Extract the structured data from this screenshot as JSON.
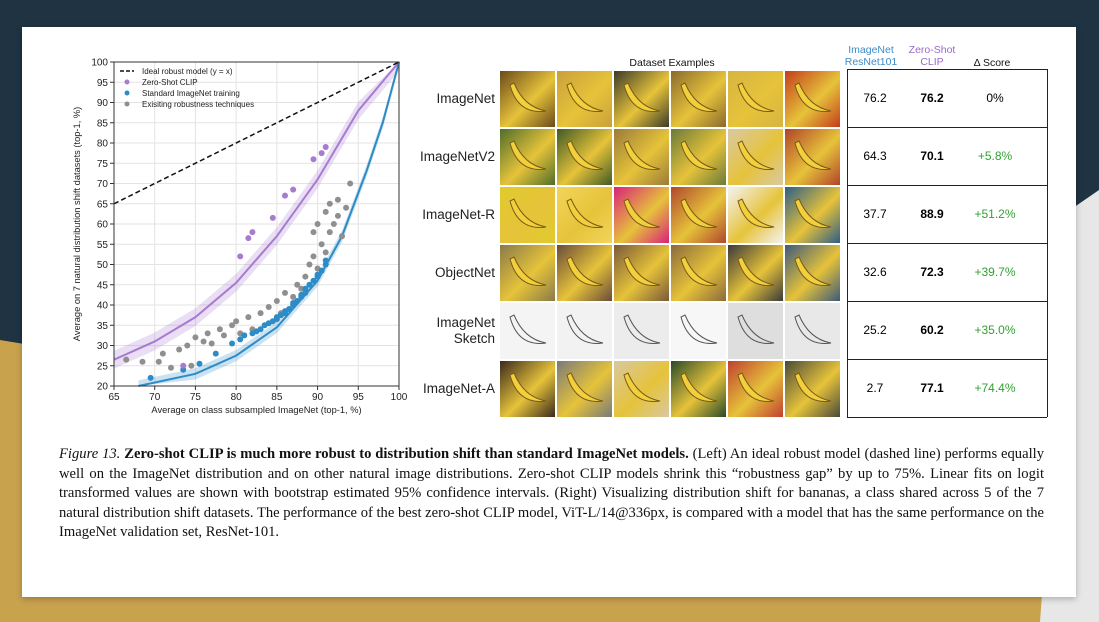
{
  "colors": {
    "zero_shot_clip": "#a77bd0",
    "standard_imagenet": "#2d8bc6",
    "robustness_techniques": "#8f8f8f",
    "ideal_line": "#111111",
    "gain_green": "#33a033",
    "background_dark": "#1f3342",
    "background_gold": "#c9a24e"
  },
  "chart_data": {
    "type": "scatter",
    "xlabel": "Average on class subsampled ImageNet (top-1, %)",
    "ylabel": "Average on 7 natural distribution shift datasets (top-1, %)",
    "xlim": [
      65,
      100
    ],
    "ylim": [
      20,
      100
    ],
    "x_ticks": [
      65,
      70,
      75,
      80,
      85,
      90,
      95,
      100
    ],
    "y_ticks": [
      20,
      25,
      30,
      35,
      40,
      45,
      50,
      55,
      60,
      65,
      70,
      75,
      80,
      85,
      90,
      95,
      100
    ],
    "grid": true,
    "legend_position": "top-left",
    "legend": [
      "Ideal robust model (y = x)",
      "Zero-Shot CLIP",
      "Standard ImageNet training",
      "Exisiting robustness techniques"
    ],
    "series": [
      {
        "name": "Zero-Shot CLIP",
        "points": [
          [
            73.5,
            25
          ],
          [
            80.5,
            52
          ],
          [
            81.5,
            56.5
          ],
          [
            82,
            58
          ],
          [
            84.5,
            61.5
          ],
          [
            86,
            67
          ],
          [
            87,
            68.5
          ],
          [
            89.5,
            76
          ],
          [
            90.5,
            77.5
          ],
          [
            91,
            79
          ]
        ]
      },
      {
        "name": "Standard ImageNet training",
        "points": [
          [
            69.5,
            22
          ],
          [
            73.5,
            24
          ],
          [
            75.5,
            25.5
          ],
          [
            77.5,
            28
          ],
          [
            79.5,
            30.5
          ],
          [
            80.5,
            31.5
          ],
          [
            81,
            32.5
          ],
          [
            82,
            33
          ],
          [
            82.5,
            33.5
          ],
          [
            83,
            34
          ],
          [
            83.5,
            35
          ],
          [
            84,
            35.5
          ],
          [
            84.5,
            36
          ],
          [
            85,
            36.5
          ],
          [
            85,
            37
          ],
          [
            85.5,
            37.5
          ],
          [
            86,
            38
          ],
          [
            86,
            38.5
          ],
          [
            86.5,
            39
          ],
          [
            87,
            40
          ],
          [
            87,
            40.5
          ],
          [
            87.5,
            41
          ],
          [
            88,
            42
          ],
          [
            88,
            42.5
          ],
          [
            88.5,
            43
          ],
          [
            88.5,
            44
          ],
          [
            89,
            45
          ],
          [
            89.5,
            46
          ],
          [
            90,
            47
          ],
          [
            90,
            47.5
          ],
          [
            90.5,
            48.5
          ],
          [
            91,
            50
          ],
          [
            91,
            51
          ]
        ]
      },
      {
        "name": "Exisiting robustness techniques",
        "points": [
          [
            66.5,
            26.5
          ],
          [
            68.5,
            26
          ],
          [
            70.5,
            26
          ],
          [
            71,
            28
          ],
          [
            72,
            24.5
          ],
          [
            73,
            29
          ],
          [
            74,
            30
          ],
          [
            74.5,
            25
          ],
          [
            75,
            32
          ],
          [
            76,
            31
          ],
          [
            76.5,
            33
          ],
          [
            77,
            30.5
          ],
          [
            78,
            34
          ],
          [
            78.5,
            32.5
          ],
          [
            79.5,
            35
          ],
          [
            80,
            36
          ],
          [
            80.5,
            33
          ],
          [
            81.5,
            37
          ],
          [
            82,
            34
          ],
          [
            83,
            38
          ],
          [
            84,
            39.5
          ],
          [
            85,
            41
          ],
          [
            85.5,
            38
          ],
          [
            86,
            43
          ],
          [
            87,
            42
          ],
          [
            87.5,
            45
          ],
          [
            88,
            44
          ],
          [
            88.5,
            47
          ],
          [
            89,
            50
          ],
          [
            89.5,
            52
          ],
          [
            90,
            49
          ],
          [
            90.5,
            55
          ],
          [
            91,
            53
          ],
          [
            91.5,
            58
          ],
          [
            92,
            60
          ],
          [
            92.5,
            62
          ],
          [
            93,
            57
          ],
          [
            93.5,
            64
          ],
          [
            94,
            70
          ],
          [
            92.5,
            66
          ],
          [
            91,
            63
          ],
          [
            89.5,
            58
          ],
          [
            90,
            60
          ],
          [
            91.5,
            65
          ]
        ]
      }
    ],
    "fit_lines": [
      {
        "name": "Zero-Shot CLIP",
        "points": [
          [
            65,
            26.5
          ],
          [
            70,
            31
          ],
          [
            75,
            37
          ],
          [
            80,
            45.5
          ],
          [
            85,
            57
          ],
          [
            90,
            71
          ],
          [
            95,
            88
          ],
          [
            100,
            100
          ]
        ]
      },
      {
        "name": "Standard ImageNet training",
        "points": [
          [
            68,
            20
          ],
          [
            75,
            23
          ],
          [
            80,
            27.5
          ],
          [
            85,
            34.5
          ],
          [
            90,
            46
          ],
          [
            93,
            57
          ],
          [
            96,
            73
          ],
          [
            98,
            85
          ],
          [
            100,
            100
          ]
        ]
      },
      {
        "name": "Ideal robust model (y = x)",
        "points": [
          [
            65,
            65
          ],
          [
            100,
            100
          ]
        ]
      }
    ]
  },
  "table": {
    "header_dataset_examples": "Dataset Examples",
    "header_resnet_line1": "ImageNet",
    "header_resnet_line2": "ResNet101",
    "header_clip_line1": "Zero-Shot",
    "header_clip_line2": "CLIP",
    "header_delta": "Δ Score",
    "rows": [
      {
        "label": "ImageNet",
        "resnet": "76.2",
        "clip": "76.2",
        "delta": "0%"
      },
      {
        "label": "ImageNetV2",
        "resnet": "64.3",
        "clip": "70.1",
        "delta": "+5.8%"
      },
      {
        "label": "ImageNet-R",
        "resnet": "37.7",
        "clip": "88.9",
        "delta": "+51.2%"
      },
      {
        "label": "ObjectNet",
        "resnet": "32.6",
        "clip": "72.3",
        "delta": "+39.7%"
      },
      {
        "label": "ImageNet\nSketch",
        "resnet": "25.2",
        "clip": "60.2",
        "delta": "+35.0%"
      },
      {
        "label": "ImageNet-A",
        "resnet": "2.7",
        "clip": "77.1",
        "delta": "+74.4%"
      }
    ],
    "thumbnail_colors": [
      [
        "#6b4a1c",
        "#c9a03a",
        "#3b3b2a",
        "#8a6a2e",
        "#d7b441",
        "#c33d1c"
      ],
      [
        "#4f6e2a",
        "#3f5a26",
        "#9a7b3a",
        "#6a7a3a",
        "#d9c9a3",
        "#b0442a"
      ],
      [
        "#e0cb2c",
        "#f2d55a",
        "#d9227a",
        "#b0472c",
        "#f3f3f3",
        "#2d5e86"
      ],
      [
        "#8a7a4a",
        "#6a4c3a",
        "#7a5a3a",
        "#8b6a3c",
        "#3a3a3a",
        "#3c5a7a"
      ],
      [
        "#f4f4f4",
        "#f2f2f2",
        "#ececec",
        "#f7f7f7",
        "#dedede",
        "#e8e8e8"
      ],
      [
        "#3a2a1c",
        "#7a7a7a",
        "#d8c8a0",
        "#2a4a2a",
        "#c04030",
        "#4a4a3a"
      ]
    ]
  },
  "caption": {
    "figure_label": "Figure 13.",
    "title": "Zero-shot CLIP is much more robust to distribution shift than standard ImageNet models.",
    "body": "(Left) An ideal robust model (dashed line) performs equally well on the ImageNet distribution and on other natural image distributions. Zero-shot CLIP models shrink this “robustness gap” by up to 75%. Linear fits on logit transformed values are shown with bootstrap estimated 95% confidence intervals. (Right) Visualizing distribution shift for bananas, a class shared across 5 of the 7 natural distribution shift datasets. The performance of the best zero-shot CLIP model, ViT-L/14@336px, is compared with a model that has the same performance on the ImageNet validation set, ResNet-101."
  }
}
